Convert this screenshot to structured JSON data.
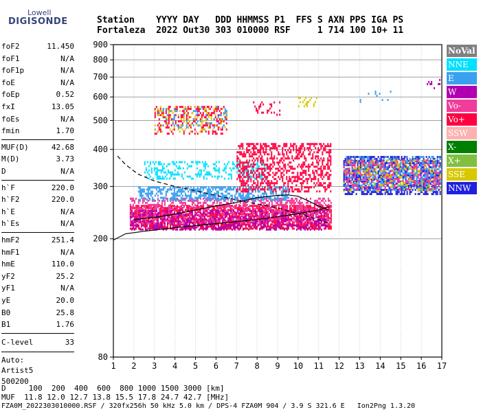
{
  "logo": {
    "line1": "Lowell",
    "line2": "DIGISONDE"
  },
  "header": {
    "row1": "Station    YYYY DAY   DDD HHMMSS P1  FFS S AXN PPS IGA PS",
    "row2": "Fortaleza  2022 Out30 303 010000 RSF     1 714 100 10+ 11"
  },
  "params": {
    "group1": [
      {
        "label": "foF2",
        "value": "11.450"
      },
      {
        "label": "foF1",
        "value": "N/A"
      },
      {
        "label": "foF1p",
        "value": "N/A"
      },
      {
        "label": "foE",
        "value": "N/A"
      },
      {
        "label": "foEp",
        "value": "0.52"
      },
      {
        "label": "fxI",
        "value": "13.05"
      },
      {
        "label": "foEs",
        "value": "N/A"
      },
      {
        "label": "fmin",
        "value": "1.70"
      }
    ],
    "group2": [
      {
        "label": "MUF(D)",
        "value": "42.68"
      },
      {
        "label": "M(D)",
        "value": "3.73"
      },
      {
        "label": "D",
        "value": "N/A"
      }
    ],
    "group3": [
      {
        "label": "h`F",
        "value": "220.0"
      },
      {
        "label": "h`F2",
        "value": "220.0"
      },
      {
        "label": "h`E",
        "value": "N/A"
      },
      {
        "label": "h`Es",
        "value": "N/A"
      }
    ],
    "group4": [
      {
        "label": "hmF2",
        "value": "251.4"
      },
      {
        "label": "hmF1",
        "value": "N/A"
      },
      {
        "label": "hmE",
        "value": "110.0"
      },
      {
        "label": "yF2",
        "value": "25.2"
      },
      {
        "label": "yF1",
        "value": "N/A"
      },
      {
        "label": "yE",
        "value": "20.0"
      },
      {
        "label": "B0",
        "value": "25.8"
      },
      {
        "label": "B1",
        "value": "1.76"
      }
    ],
    "clevel": {
      "label": "C-level",
      "value": "33"
    },
    "auto": [
      "Auto:",
      "Artist5",
      "500200"
    ]
  },
  "legend": [
    {
      "label": "NoVal",
      "color": "#808080"
    },
    {
      "label": "NNE",
      "color": "#00e0ff"
    },
    {
      "label": "E",
      "color": "#3aa0f0"
    },
    {
      "label": "W",
      "color": "#b000b0"
    },
    {
      "label": "Vo-",
      "color": "#f03c9a"
    },
    {
      "label": "Vo+",
      "color": "#ff0040"
    },
    {
      "label": "SSW",
      "color": "#ffb0b0"
    },
    {
      "label": "X-",
      "color": "#008000"
    },
    {
      "label": "X+",
      "color": "#80c040"
    },
    {
      "label": "SSE",
      "color": "#d8c800"
    },
    {
      "label": "NNW",
      "color": "#2020e0"
    }
  ],
  "footer": {
    "line1": "D     100  200  400  600  800 1000 1500 3000 [km]",
    "line2": "MUF  11.8 12.0 12.7 13.8 15.5 17.8 24.7 42.7 [MHz]",
    "line3": "FZA0M_2022303010000.RSF / 320fx256h 50 kHz 5.0 km / DPS-4 FZA0M 904 / 3.9 S 321.6 E   Ion2Png 1.3.20"
  },
  "chart_data": {
    "type": "scatter",
    "title": "",
    "xlabel": "",
    "ylabel": "",
    "xlim": [
      1,
      17
    ],
    "ylim": [
      80,
      900
    ],
    "y_scale": "log",
    "x_ticks": [
      1,
      2,
      3,
      4,
      5,
      6,
      7,
      8,
      9,
      10,
      11,
      12,
      13,
      14,
      15,
      16,
      17
    ],
    "y_ticks": [
      80,
      200,
      300,
      400,
      500,
      600,
      700,
      800,
      900
    ],
    "grid": true,
    "legend_position": "right",
    "clusters": [
      {
        "color_label": "Vo+",
        "x": [
          1.8,
          11.6
        ],
        "y": [
          215,
          260
        ],
        "density": 0.7
      },
      {
        "color_label": "Vo-",
        "x": [
          1.8,
          11.6
        ],
        "y": [
          225,
          275
        ],
        "density": 0.5
      },
      {
        "color_label": "W",
        "x": [
          1.8,
          11.4
        ],
        "y": [
          215,
          250
        ],
        "density": 0.35
      },
      {
        "color_label": "E",
        "x": [
          2.2,
          9.5
        ],
        "y": [
          270,
          300
        ],
        "density": 0.55
      },
      {
        "color_label": "NNE",
        "x": [
          2.5,
          8.5
        ],
        "y": [
          320,
          365
        ],
        "density": 0.3
      },
      {
        "color_label": "Vo+",
        "x": [
          7.0,
          11.6
        ],
        "y": [
          290,
          420
        ],
        "density": 0.45
      },
      {
        "color_label": "NNW",
        "x": [
          12.2,
          16.9
        ],
        "y": [
          285,
          380
        ],
        "density": 0.6
      },
      {
        "color_label": "E",
        "x": [
          12.2,
          16.9
        ],
        "y": [
          290,
          380
        ],
        "density": 0.35
      },
      {
        "color_label": "SSE",
        "x": [
          12.2,
          16.9
        ],
        "y": [
          290,
          370
        ],
        "density": 0.2
      },
      {
        "color_label": "Vo-",
        "x": [
          12.2,
          16.9
        ],
        "y": [
          295,
          370
        ],
        "density": 0.25
      },
      {
        "color_label": "Vo+",
        "x": [
          3.0,
          6.5
        ],
        "y": [
          455,
          560
        ],
        "density": 0.3
      },
      {
        "color_label": "SSE",
        "x": [
          3.0,
          6.5
        ],
        "y": [
          460,
          560
        ],
        "density": 0.15
      },
      {
        "color_label": "E",
        "x": [
          3.2,
          6.5
        ],
        "y": [
          470,
          560
        ],
        "density": 0.12
      },
      {
        "color_label": "Vo+",
        "x": [
          7.8,
          9.2
        ],
        "y": [
          520,
          580
        ],
        "density": 0.2
      },
      {
        "color_label": "SSE",
        "x": [
          10.0,
          10.9
        ],
        "y": [
          555,
          600
        ],
        "density": 0.3
      },
      {
        "color_label": "E",
        "x": [
          12.8,
          14.5
        ],
        "y": [
          580,
          630
        ],
        "density": 0.1
      },
      {
        "color_label": "W",
        "x": [
          16.2,
          16.9
        ],
        "y": [
          640,
          690
        ],
        "density": 0.3
      }
    ],
    "curves": [
      {
        "style": "solid",
        "points": [
          [
            1.0,
            198
          ],
          [
            1.6,
            208
          ],
          [
            2.5,
            212
          ],
          [
            4.0,
            218
          ],
          [
            6.0,
            225
          ],
          [
            8.0,
            232
          ],
          [
            10.0,
            243
          ],
          [
            11.0,
            250
          ],
          [
            11.5,
            256
          ]
        ]
      },
      {
        "style": "dashed",
        "points": [
          [
            1.2,
            380
          ],
          [
            1.6,
            355
          ],
          [
            2.2,
            330
          ],
          [
            3.0,
            313
          ],
          [
            4.0,
            300
          ],
          [
            5.0,
            290
          ],
          [
            6.0,
            280
          ],
          [
            7.0,
            270
          ],
          [
            8.0,
            262
          ],
          [
            9.0,
            254
          ],
          [
            10.0,
            243
          ],
          [
            11.0,
            232
          ],
          [
            11.5,
            225
          ]
        ]
      },
      {
        "style": "solid",
        "points": [
          [
            2.0,
            232
          ],
          [
            3.0,
            236
          ],
          [
            4.0,
            242
          ],
          [
            5.0,
            250
          ],
          [
            6.0,
            258
          ],
          [
            7.0,
            265
          ],
          [
            8.0,
            275
          ],
          [
            9.0,
            280
          ],
          [
            9.5,
            281
          ],
          [
            10.0,
            278
          ],
          [
            10.5,
            268
          ],
          [
            11.0,
            258
          ],
          [
            11.5,
            250
          ]
        ]
      }
    ]
  }
}
